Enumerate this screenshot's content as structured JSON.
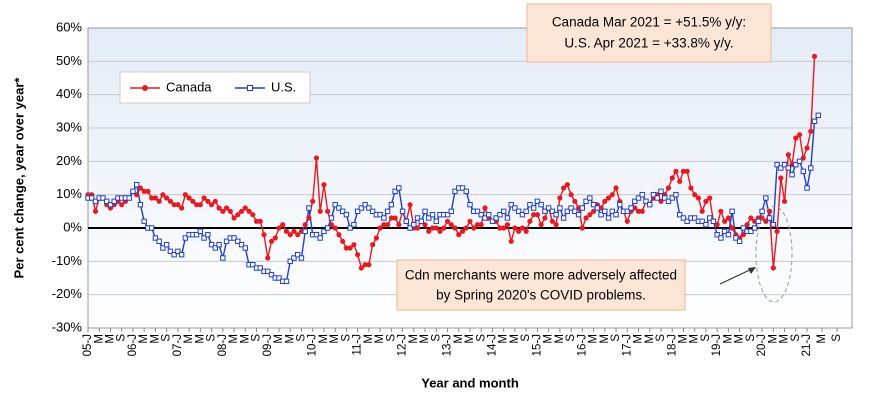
{
  "chart_data": {
    "type": "line",
    "x_label": "Year and month",
    "y_label": "Per cent change,  year over year*",
    "ylim": [
      -30,
      60
    ],
    "yticks": [
      {
        "value": -30,
        "label": "-30%"
      },
      {
        "value": -20,
        "label": "-20%"
      },
      {
        "value": -10,
        "label": "-10%"
      },
      {
        "value": 0,
        "label": "0%"
      },
      {
        "value": 10,
        "label": "10%"
      },
      {
        "value": 20,
        "label": "20%"
      },
      {
        "value": 30,
        "label": "30%"
      },
      {
        "value": 40,
        "label": "40%"
      },
      {
        "value": 50,
        "label": "50%"
      },
      {
        "value": 60,
        "label": "60%"
      }
    ],
    "grid": true,
    "legend": "upper left",
    "annotations": [
      [
        "Canada Mar 2021 = +51.5% y/y:",
        "U.S. Apr 2021 = +33.8% y/y."
      ],
      [
        "Cdn merchants were more adversely affected",
        "by Spring 2020's COVID problems."
      ]
    ],
    "categories": [
      "05-J",
      null,
      null,
      "M",
      null,
      null,
      "M",
      null,
      null,
      "S",
      null,
      null,
      "06-J",
      null,
      null,
      "M",
      null,
      null,
      "M",
      null,
      null,
      "S",
      null,
      null,
      "07-J",
      null,
      null,
      "M",
      null,
      null,
      "M",
      null,
      null,
      "S",
      null,
      null,
      "08-J",
      null,
      null,
      "M",
      null,
      null,
      "M",
      null,
      null,
      "S",
      null,
      null,
      "09-J",
      null,
      null,
      "M",
      null,
      null,
      "M",
      null,
      null,
      "S",
      null,
      null,
      "10-J",
      null,
      null,
      "M",
      null,
      null,
      "M",
      null,
      null,
      "S",
      null,
      null,
      "11-J",
      null,
      null,
      "M",
      null,
      null,
      "M",
      null,
      null,
      "S",
      null,
      null,
      "12-J",
      null,
      null,
      "M",
      null,
      null,
      "M",
      null,
      null,
      "S",
      null,
      null,
      "13-J",
      null,
      null,
      "M",
      null,
      null,
      "M",
      null,
      null,
      "S",
      null,
      null,
      "14-J",
      null,
      null,
      "M",
      null,
      null,
      "M",
      null,
      null,
      "S",
      null,
      null,
      "15-J",
      null,
      null,
      "M",
      null,
      null,
      "M",
      null,
      null,
      "S",
      null,
      null,
      "16-J",
      null,
      null,
      "M",
      null,
      null,
      "M",
      null,
      null,
      "S",
      null,
      null,
      "17-J",
      null,
      null,
      "M",
      null,
      null,
      "M",
      null,
      null,
      "S",
      null,
      null,
      "18-J",
      null,
      null,
      "M",
      null,
      null,
      "M",
      null,
      null,
      "S",
      null,
      null,
      "19-J",
      null,
      null,
      "M",
      null,
      null,
      "M",
      null,
      null,
      "S",
      null,
      null,
      "20-J",
      null,
      null,
      "M",
      null,
      null,
      "M",
      null,
      null,
      "S",
      null,
      null,
      "21-J",
      null,
      null,
      null,
      "M",
      null,
      null,
      null,
      "S",
      null
    ],
    "series": [
      {
        "name": "Canada",
        "color": "#e8191f",
        "marker": "circle",
        "values": [
          10,
          10,
          5,
          9,
          9,
          7,
          6,
          7,
          8,
          7,
          8,
          9,
          11,
          10,
          12,
          11,
          11,
          9,
          9,
          8,
          10,
          9,
          8,
          7,
          7,
          6,
          10,
          9,
          8,
          7,
          7,
          9,
          8,
          7,
          8,
          6,
          5,
          6,
          5,
          3,
          4,
          5,
          6,
          5,
          4,
          2,
          2,
          -2,
          -9,
          -4,
          -3,
          0,
          1,
          -1,
          -2,
          -1,
          -2,
          -1,
          1,
          3,
          8,
          21,
          5,
          13,
          5,
          1,
          0,
          -2,
          -4,
          -6,
          -6,
          -5,
          -8,
          -12,
          -11,
          -11,
          -5,
          -3,
          0,
          1,
          1,
          3,
          3,
          1,
          5,
          2,
          7,
          0,
          0,
          2,
          1,
          -1,
          0,
          0,
          -1,
          0,
          2,
          1,
          0,
          -2,
          -1,
          0,
          2,
          0,
          1,
          1,
          6,
          3,
          2,
          2,
          0,
          0,
          1,
          -4,
          0,
          -1,
          0,
          -1,
          2,
          4,
          4,
          1,
          3,
          6,
          2,
          1,
          9,
          12,
          13,
          10,
          8,
          6,
          0,
          3,
          4,
          5,
          7,
          6,
          8,
          9,
          10,
          12,
          8,
          5,
          2,
          5,
          6,
          5,
          5,
          8,
          7,
          9,
          10,
          8,
          10,
          12,
          15,
          17,
          14,
          17,
          17,
          12,
          10,
          9,
          5,
          8,
          9,
          2,
          1,
          5,
          2,
          3,
          0,
          -2,
          -3,
          -2,
          1,
          3,
          2,
          3,
          3,
          2,
          5,
          -12,
          -1,
          15,
          8,
          22,
          19,
          27,
          28,
          21,
          24,
          29,
          51.5,
          null,
          null,
          null,
          null,
          null,
          null,
          null
        ]
      },
      {
        "name": "U.S.",
        "color": "#1f3fd1",
        "marker": "square",
        "values": [
          9,
          9,
          8,
          9,
          9,
          8,
          7,
          8,
          9,
          9,
          9,
          9,
          11,
          13,
          7,
          2,
          0,
          0,
          -3,
          -4,
          -6,
          -5,
          -7,
          -8,
          -7,
          -8,
          -3,
          -2,
          -2,
          -2,
          -1,
          -3,
          -2,
          -5,
          -6,
          -5,
          -9,
          -4,
          -3,
          -3,
          -4,
          -5,
          -6,
          -11,
          -11,
          -12,
          -12,
          -13,
          -13,
          -14,
          -15,
          -15,
          -16,
          -16,
          -10,
          -9,
          -8,
          -9,
          -1,
          6,
          -2,
          -2,
          -3,
          -1,
          0,
          3,
          7,
          6,
          5,
          4,
          0,
          1,
          5,
          6,
          7,
          6,
          5,
          4,
          4,
          3,
          5,
          7,
          11,
          12,
          5,
          2,
          0,
          1,
          3,
          2,
          5,
          3,
          4,
          2,
          4,
          4,
          4,
          5,
          11,
          12,
          12,
          11,
          7,
          5,
          5,
          4,
          3,
          4,
          2,
          3,
          4,
          5,
          3,
          7,
          6,
          5,
          4,
          5,
          7,
          6,
          8,
          7,
          5,
          6,
          5,
          4,
          6,
          3,
          5,
          6,
          5,
          4,
          6,
          8,
          9,
          7,
          6,
          4,
          5,
          3,
          5,
          4,
          7,
          5,
          5,
          6,
          8,
          9,
          10,
          8,
          7,
          10,
          9,
          11,
          9,
          8,
          9,
          10,
          4,
          3,
          2,
          3,
          3,
          2,
          2,
          1,
          3,
          2,
          -2,
          -3,
          -1,
          -2,
          5,
          -3,
          -4,
          0,
          -1,
          -1,
          0,
          2,
          5,
          9,
          3,
          1,
          19,
          18,
          19,
          18,
          16,
          19,
          20,
          17,
          12,
          18,
          32,
          33.8,
          null,
          null,
          null,
          null,
          null,
          null
        ]
      }
    ]
  }
}
